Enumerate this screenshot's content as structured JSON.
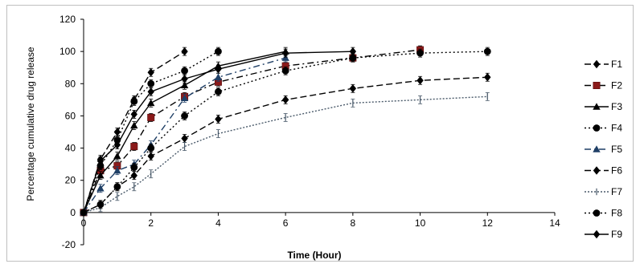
{
  "chart_data": {
    "type": "line",
    "xlabel": "Time (Hour)",
    "ylabel": "Percentage cumulative drug release",
    "xlim": [
      0,
      14
    ],
    "ylim": [
      -20,
      120
    ],
    "xticks": [
      0,
      2,
      4,
      6,
      8,
      10,
      12,
      14
    ],
    "yticks": [
      -20,
      0,
      20,
      40,
      60,
      80,
      100,
      120
    ],
    "grid": false,
    "legend_position": "right",
    "series": [
      {
        "name": "F1",
        "marker": "diamond",
        "dash": "8,4",
        "x": [
          0,
          0.5,
          1,
          1.5,
          2,
          3
        ],
        "y": [
          0,
          33,
          50,
          70,
          87,
          100
        ]
      },
      {
        "name": "F2",
        "marker": "square",
        "dash": "8,4,2,4",
        "x": [
          0,
          0.5,
          1,
          1.5,
          2,
          3,
          4,
          6,
          8,
          10
        ],
        "y": [
          0,
          26,
          29,
          41,
          59,
          72,
          81,
          91,
          96,
          101
        ]
      },
      {
        "name": "F3",
        "marker": "triangle",
        "dash": "",
        "x": [
          0,
          0.5,
          1,
          1.5,
          2,
          3,
          4,
          6
        ],
        "y": [
          0,
          23,
          35,
          54,
          68,
          79,
          91,
          100
        ]
      },
      {
        "name": "F4",
        "marker": "circle",
        "dash": "2,3",
        "x": [
          0,
          0.5,
          1,
          1.5,
          2,
          3,
          4
        ],
        "y": [
          0,
          29,
          45,
          69,
          80,
          88,
          100
        ]
      },
      {
        "name": "F5",
        "marker": "triangle",
        "dash": "8,4,2,4",
        "x": [
          0,
          0.5,
          1,
          1.5,
          2,
          3,
          4,
          6
        ],
        "y": [
          0,
          15,
          26,
          30,
          42,
          71,
          84,
          96
        ]
      },
      {
        "name": "F6",
        "marker": "diamond",
        "dash": "8,4",
        "x": [
          0,
          0.5,
          1,
          1.5,
          2,
          3,
          4,
          6,
          8,
          10,
          12
        ],
        "y": [
          0,
          5,
          16,
          23,
          35,
          46,
          58,
          70,
          77,
          82,
          84
        ]
      },
      {
        "name": "F7",
        "marker": "bar",
        "dash": "2,2",
        "x": [
          0,
          0.5,
          1,
          1.5,
          2,
          3,
          4,
          6,
          8,
          10,
          12
        ],
        "y": [
          0,
          3,
          10,
          16,
          24,
          41,
          49,
          59,
          68,
          70,
          72
        ]
      },
      {
        "name": "F8",
        "marker": "circle",
        "dash": "2,3",
        "x": [
          0,
          0.5,
          1,
          1.5,
          2,
          3,
          4,
          6,
          8,
          10,
          12
        ],
        "y": [
          0,
          5,
          16,
          28,
          40,
          60,
          75,
          88,
          96,
          99,
          100
        ]
      },
      {
        "name": "F9",
        "marker": "diamond",
        "dash": "",
        "x": [
          0,
          0.5,
          1,
          1.5,
          2,
          3,
          4,
          6,
          8
        ],
        "y": [
          0,
          32,
          42,
          61,
          75,
          83,
          89,
          99,
          100
        ]
      }
    ]
  }
}
